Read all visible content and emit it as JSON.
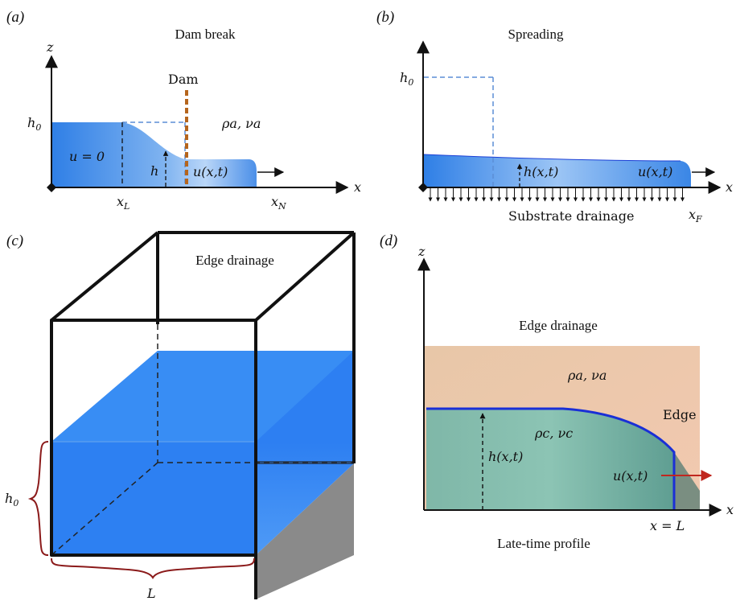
{
  "panel_a": {
    "label": "(a)",
    "title": "Dam break",
    "axis_z": "z",
    "axis_x": "x",
    "h0": "h0",
    "dam": "Dam",
    "ambient": "ρa, νa",
    "u_zero": "u = 0",
    "h": "h",
    "velocity": "u(x,t)",
    "xL": "xL",
    "xN": "xN"
  },
  "panel_b": {
    "label": "(b)",
    "title": "Spreading",
    "axis_x": "x",
    "h0": "h0",
    "height": "h(x,t)",
    "velocity": "u(x,t)",
    "drainage": "Substrate drainage",
    "xF": "xF"
  },
  "panel_c": {
    "label": "(c)",
    "title": "Edge drainage",
    "h0": "h0",
    "L": "L"
  },
  "panel_d": {
    "label": "(d)",
    "title": "Edge drainage",
    "axis_z": "z",
    "axis_x": "x",
    "ambient": "ρa, νa",
    "current": "ρc, νc",
    "edge": "Edge",
    "height": "h(x,t)",
    "velocity": "u(x,t)",
    "xeqL": "x = L",
    "caption": "Late-time profile"
  },
  "colors": {
    "fluid_blue": "#2f7fe6",
    "fluid_light": "#a9cdf7",
    "dam_brown": "#b5651d",
    "dashed_blue": "#5b8ed6",
    "brace_red": "#8b1a1a",
    "arrow_red": "#c0271f",
    "profile_blue": "#1a2fd6"
  }
}
